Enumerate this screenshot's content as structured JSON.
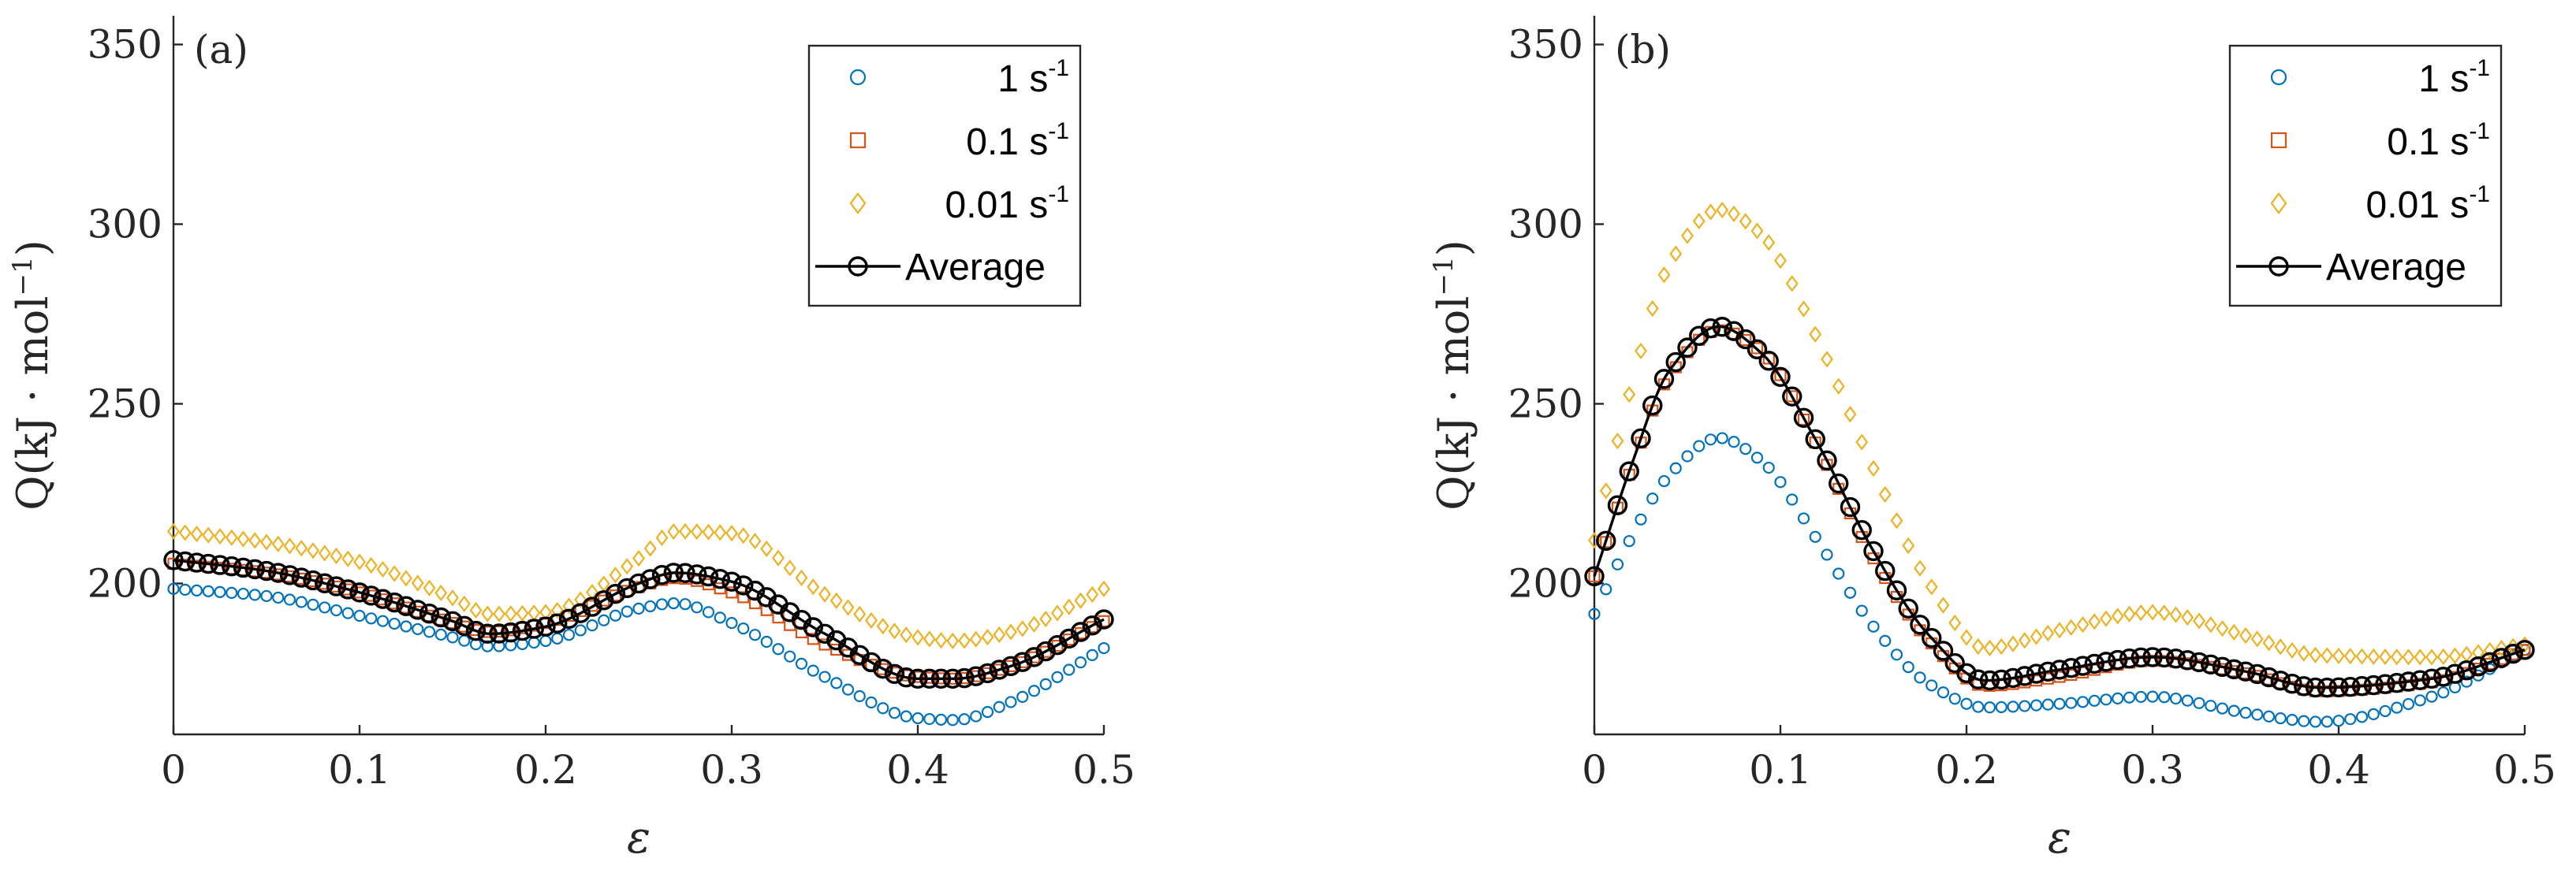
{
  "colors": {
    "rate_1": "#0072BD",
    "rate_0_1": "#D95319",
    "rate_0_01": "#EDB120",
    "average": "#000000",
    "axis": "#262626"
  },
  "chart_data": [
    {
      "type": "scatter",
      "panel_label": "(a)",
      "xlabel": "ε",
      "ylabel": "Q(kJ · mol−1)",
      "ylabel_parts": {
        "main": "Q(kJ · mol",
        "sup": "−1",
        "close": ")"
      },
      "xlim": [
        0,
        0.5
      ],
      "ylim": [
        158,
        358
      ],
      "xticks": [
        0,
        0.1,
        0.2,
        0.3,
        0.4,
        0.5
      ],
      "xtick_labels": [
        "0",
        "0.1",
        "0.2",
        "0.3",
        "0.4",
        "0.5"
      ],
      "yticks": [
        200,
        250,
        300,
        350
      ],
      "ytick_labels": [
        "200",
        "250",
        "300",
        "350"
      ],
      "legend_position": "top-right",
      "x": [
        0,
        0.05,
        0.1,
        0.15,
        0.17,
        0.2,
        0.25,
        0.27,
        0.3,
        0.35,
        0.4,
        0.42,
        0.45,
        0.5
      ],
      "series": [
        {
          "name": "1 s-1",
          "name_main": "1 s",
          "name_sup": "-1",
          "marker": "circle",
          "color_key": "rate_1",
          "values": [
            198.5,
            196.5,
            191,
            185,
            182.5,
            184,
            193,
            194.5,
            189,
            174,
            162.5,
            162,
            167,
            182
          ]
        },
        {
          "name": "0.1 s-1",
          "name_main": "0.1 s",
          "name_sup": "-1",
          "marker": "square",
          "color_key": "rate_0_1",
          "values": [
            205.5,
            203,
            197.5,
            189,
            186.5,
            189,
            199,
            201.5,
            197.5,
            183,
            174,
            173.5,
            177,
            189.5
          ]
        },
        {
          "name": "0.01 s-1",
          "name_main": "0.01 s",
          "name_sup": "-1",
          "marker": "diamond",
          "color_key": "rate_0_01",
          "values": [
            214.5,
            211.5,
            206,
            196,
            191.5,
            192,
            207,
            214.5,
            214,
            197,
            185,
            184,
            186.5,
            198.5
          ]
        },
        {
          "name": "Average",
          "name_main": "Average",
          "name_sup": "",
          "marker": "line-circle",
          "color_key": "average",
          "values": [
            206.5,
            203.5,
            197.5,
            189.5,
            186,
            188,
            200,
            203,
            200.5,
            186,
            173.5,
            173.5,
            177,
            190
          ]
        }
      ]
    },
    {
      "type": "scatter",
      "panel_label": "(b)",
      "xlabel": "ε",
      "ylabel": "Q(kJ · mol−1)",
      "ylabel_parts": {
        "main": "Q(kJ · mol",
        "sup": "−1",
        "close": ")"
      },
      "xlim": [
        0,
        0.5
      ],
      "ylim": [
        158,
        358
      ],
      "xticks": [
        0,
        0.1,
        0.2,
        0.3,
        0.4,
        0.5
      ],
      "xtick_labels": [
        "0",
        "0.1",
        "0.2",
        "0.3",
        "0.4",
        "0.5"
      ],
      "yticks": [
        200,
        250,
        300,
        350
      ],
      "ytick_labels": [
        "200",
        "250",
        "300",
        "350"
      ],
      "legend_position": "top-right",
      "x": [
        0,
        0.02,
        0.04,
        0.067,
        0.09,
        0.12,
        0.15,
        0.18,
        0.21,
        0.25,
        0.3,
        0.35,
        0.39,
        0.45,
        0.5
      ],
      "series": [
        {
          "name": "1 s-1",
          "name_main": "1 s",
          "name_sup": "-1",
          "marker": "circle",
          "color_key": "rate_1",
          "values": [
            191.5,
            213,
            230,
            240.5,
            234,
            212,
            188,
            172,
            165.5,
            166.5,
            168.5,
            164,
            161.5,
            168.5,
            181.5
          ]
        },
        {
          "name": "0.1 s-1",
          "name_main": "0.1 s",
          "name_sup": "-1",
          "marker": "square",
          "color_key": "rate_0_1",
          "values": [
            202,
            232,
            257.5,
            270.5,
            264.5,
            238,
            207,
            184,
            171.5,
            174,
            178.5,
            175,
            170,
            172.5,
            181.5
          ]
        },
        {
          "name": "0.01 s-1",
          "name_main": "0.01 s",
          "name_sup": "-1",
          "marker": "diamond",
          "color_key": "rate_0_01",
          "values": [
            212,
            255,
            288.5,
            304,
            297,
            268,
            232,
            200,
            182,
            187,
            192,
            185.5,
            180,
            179.5,
            183
          ]
        },
        {
          "name": "Average",
          "name_main": "Average",
          "name_sup": "",
          "marker": "line-circle",
          "color_key": "average",
          "values": [
            202,
            233,
            259,
            271.5,
            264,
            239,
            209,
            185.5,
            173,
            176,
            179.5,
            175.5,
            171,
            173.5,
            181.5
          ]
        }
      ]
    }
  ]
}
